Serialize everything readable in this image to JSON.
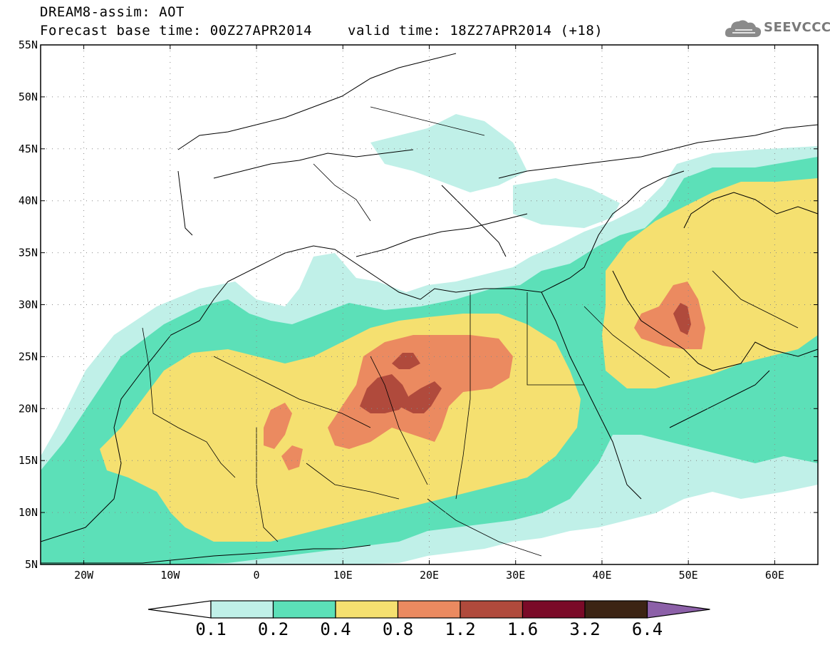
{
  "header": {
    "line1": "DREAM8-assim: AOT",
    "base_time": "Forecast base time: 00Z27APR2014",
    "valid_time": "valid time: 18Z27APR2014 (+18)"
  },
  "logo": {
    "text": "SEEVCCC",
    "icon": "cloud-icon"
  },
  "map": {
    "lon_range": [
      -25,
      65
    ],
    "lat_range": [
      5,
      55
    ],
    "lat_ticks": [
      {
        "value": 55,
        "label": "55N"
      },
      {
        "value": 50,
        "label": "50N"
      },
      {
        "value": 45,
        "label": "45N"
      },
      {
        "value": 40,
        "label": "40N"
      },
      {
        "value": 35,
        "label": "35N"
      },
      {
        "value": 30,
        "label": "30N"
      },
      {
        "value": 25,
        "label": "25N"
      },
      {
        "value": 20,
        "label": "20N"
      },
      {
        "value": 15,
        "label": "15N"
      },
      {
        "value": 10,
        "label": "10N"
      },
      {
        "value": 5,
        "label": "5N"
      }
    ],
    "lon_ticks": [
      {
        "value": -20,
        "label": "20W"
      },
      {
        "value": -10,
        "label": "10W"
      },
      {
        "value": 0,
        "label": "0"
      },
      {
        "value": 10,
        "label": "10E"
      },
      {
        "value": 20,
        "label": "20E"
      },
      {
        "value": 30,
        "label": "30E"
      },
      {
        "value": 40,
        "label": "40E"
      },
      {
        "value": 50,
        "label": "50E"
      },
      {
        "value": 60,
        "label": "60E"
      }
    ],
    "grid": "dotted"
  },
  "colorbar": {
    "levels": [
      "0.1",
      "0.2",
      "0.4",
      "0.8",
      "1.2",
      "1.6",
      "3.2",
      "6.4"
    ],
    "colors": [
      "#ffffff",
      "#c0f0e8",
      "#5ce0b8",
      "#f5e070",
      "#eb8a60",
      "#b04a3c",
      "#7a0a28",
      "#3c2414",
      "#8c60a8"
    ]
  }
}
